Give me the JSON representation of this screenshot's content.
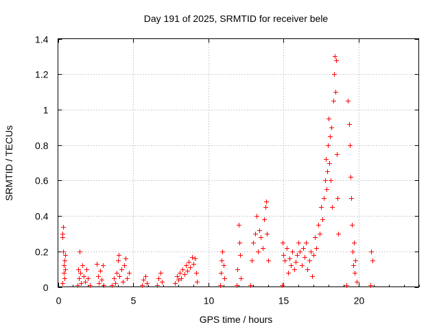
{
  "chart_data": {
    "type": "scatter",
    "title": "Day 191 of 2025, SRMTID for receiver bele",
    "xlabel": "GPS time / hours",
    "ylabel": "SRMTID / TECUs",
    "xlim": [
      0,
      24
    ],
    "ylim": [
      0,
      1.4
    ],
    "x_ticks": [
      0,
      5,
      10,
      15,
      20
    ],
    "x_tick_labels": [
      "0",
      "5",
      "10",
      "15",
      "20"
    ],
    "y_ticks": [
      0,
      0.2,
      0.4,
      0.6,
      0.8,
      1.0,
      1.2,
      1.4
    ],
    "y_tick_labels": [
      "0",
      "0.2",
      "0.4",
      "0.6",
      "0.8",
      "1",
      "1.2",
      "1.4"
    ],
    "grid": true,
    "marker": "plus",
    "series": [
      {
        "name": "SRMTID",
        "color": "#ff0000",
        "points": [
          [
            0.3,
            0.28
          ],
          [
            0.3,
            0.3
          ],
          [
            0.35,
            0.34
          ],
          [
            0.35,
            0.2
          ],
          [
            0.4,
            0.12
          ],
          [
            0.4,
            0.08
          ],
          [
            0.45,
            0.15
          ],
          [
            0.45,
            0.05
          ],
          [
            0.5,
            0.1
          ],
          [
            0.3,
            0.02
          ],
          [
            0.5,
            0.18
          ],
          [
            1.3,
            0.01
          ],
          [
            1.35,
            0.1
          ],
          [
            1.4,
            0.05
          ],
          [
            1.45,
            0.2
          ],
          [
            1.5,
            0.08
          ],
          [
            1.55,
            0.02
          ],
          [
            1.6,
            0.12
          ],
          [
            1.7,
            0.06
          ],
          [
            1.8,
            0.03
          ],
          [
            1.9,
            0.1
          ],
          [
            2.0,
            0.05
          ],
          [
            2.1,
            0.01
          ],
          [
            2.6,
            0.13
          ],
          [
            2.65,
            0.06
          ],
          [
            2.7,
            0.02
          ],
          [
            2.8,
            0.09
          ],
          [
            2.9,
            0.04
          ],
          [
            3.0,
            0.12
          ],
          [
            3.05,
            0.01
          ],
          [
            3.6,
            0.01
          ],
          [
            3.7,
            0.05
          ],
          [
            3.8,
            0.02
          ],
          [
            3.9,
            0.08
          ],
          [
            4.0,
            0.15
          ],
          [
            4.05,
            0.18
          ],
          [
            4.1,
            0.06
          ],
          [
            4.2,
            0.1
          ],
          [
            4.3,
            0.03
          ],
          [
            4.4,
            0.12
          ],
          [
            4.5,
            0.16
          ],
          [
            4.6,
            0.05
          ],
          [
            4.7,
            0.08
          ],
          [
            5.6,
            0.01
          ],
          [
            5.7,
            0.04
          ],
          [
            5.8,
            0.06
          ],
          [
            5.9,
            0.02
          ],
          [
            6.6,
            0.01
          ],
          [
            6.7,
            0.05
          ],
          [
            6.8,
            0.08
          ],
          [
            6.9,
            0.03
          ],
          [
            7.8,
            0.02
          ],
          [
            7.9,
            0.06
          ],
          [
            8.0,
            0.04
          ],
          [
            8.1,
            0.08
          ],
          [
            8.2,
            0.05
          ],
          [
            8.3,
            0.1
          ],
          [
            8.4,
            0.07
          ],
          [
            8.5,
            0.12
          ],
          [
            8.6,
            0.09
          ],
          [
            8.7,
            0.14
          ],
          [
            8.8,
            0.11
          ],
          [
            8.9,
            0.17
          ],
          [
            9.0,
            0.13
          ],
          [
            9.1,
            0.16
          ],
          [
            9.2,
            0.08
          ],
          [
            9.25,
            0.03
          ],
          [
            10.8,
            0.01
          ],
          [
            10.85,
            0.08
          ],
          [
            10.9,
            0.15
          ],
          [
            10.95,
            0.2
          ],
          [
            11.0,
            0.12
          ],
          [
            11.05,
            0.05
          ],
          [
            11.9,
            0.01
          ],
          [
            11.95,
            0.1
          ],
          [
            12.0,
            0.35
          ],
          [
            12.05,
            0.25
          ],
          [
            12.1,
            0.18
          ],
          [
            12.15,
            0.05
          ],
          [
            12.8,
            0.01
          ],
          [
            12.9,
            0.15
          ],
          [
            13.0,
            0.25
          ],
          [
            13.1,
            0.3
          ],
          [
            13.2,
            0.4
          ],
          [
            13.3,
            0.2
          ],
          [
            13.4,
            0.32
          ],
          [
            13.5,
            0.28
          ],
          [
            13.6,
            0.22
          ],
          [
            13.7,
            0.38
          ],
          [
            13.8,
            0.45
          ],
          [
            13.85,
            0.48
          ],
          [
            13.9,
            0.3
          ],
          [
            14.0,
            0.15
          ],
          [
            14.9,
            0.01
          ],
          [
            14.95,
            0.25
          ],
          [
            15.0,
            0.18
          ],
          [
            15.1,
            0.15
          ],
          [
            15.2,
            0.22
          ],
          [
            15.3,
            0.08
          ],
          [
            15.4,
            0.16
          ],
          [
            15.5,
            0.12
          ],
          [
            15.6,
            0.2
          ],
          [
            15.7,
            0.1
          ],
          [
            15.8,
            0.14
          ],
          [
            15.9,
            0.18
          ],
          [
            16.0,
            0.25
          ],
          [
            16.1,
            0.2
          ],
          [
            16.2,
            0.12
          ],
          [
            16.3,
            0.22
          ],
          [
            16.4,
            0.17
          ],
          [
            16.5,
            0.25
          ],
          [
            16.6,
            0.1
          ],
          [
            16.7,
            0.15
          ],
          [
            16.8,
            0.2
          ],
          [
            16.9,
            0.06
          ],
          [
            17.0,
            0.18
          ],
          [
            17.1,
            0.28
          ],
          [
            17.2,
            0.22
          ],
          [
            17.3,
            0.35
          ],
          [
            17.4,
            0.3
          ],
          [
            17.5,
            0.45
          ],
          [
            17.6,
            0.38
          ],
          [
            17.7,
            0.5
          ],
          [
            17.75,
            0.6
          ],
          [
            17.8,
            0.72
          ],
          [
            17.85,
            0.55
          ],
          [
            17.9,
            0.65
          ],
          [
            17.95,
            0.8
          ],
          [
            18.0,
            0.95
          ],
          [
            18.05,
            0.7
          ],
          [
            18.1,
            0.85
          ],
          [
            18.15,
            0.6
          ],
          [
            18.2,
            0.9
          ],
          [
            18.25,
            0.45
          ],
          [
            18.3,
            1.05
          ],
          [
            18.35,
            1.2
          ],
          [
            18.4,
            1.3
          ],
          [
            18.45,
            1.1
          ],
          [
            18.5,
            1.28
          ],
          [
            18.55,
            0.75
          ],
          [
            18.6,
            0.5
          ],
          [
            18.65,
            0.3
          ],
          [
            19.2,
            0.01
          ],
          [
            19.3,
            1.05
          ],
          [
            19.35,
            0.92
          ],
          [
            19.4,
            0.8
          ],
          [
            19.45,
            0.62
          ],
          [
            19.5,
            0.5
          ],
          [
            19.55,
            0.35
          ],
          [
            19.6,
            0.2
          ],
          [
            19.65,
            0.12
          ],
          [
            19.7,
            0.25
          ],
          [
            19.75,
            0.08
          ],
          [
            19.8,
            0.15
          ],
          [
            19.85,
            0.03
          ],
          [
            20.85,
            0.2
          ],
          [
            20.9,
            0.15
          ],
          [
            20.8,
            0.01
          ]
        ]
      }
    ]
  }
}
